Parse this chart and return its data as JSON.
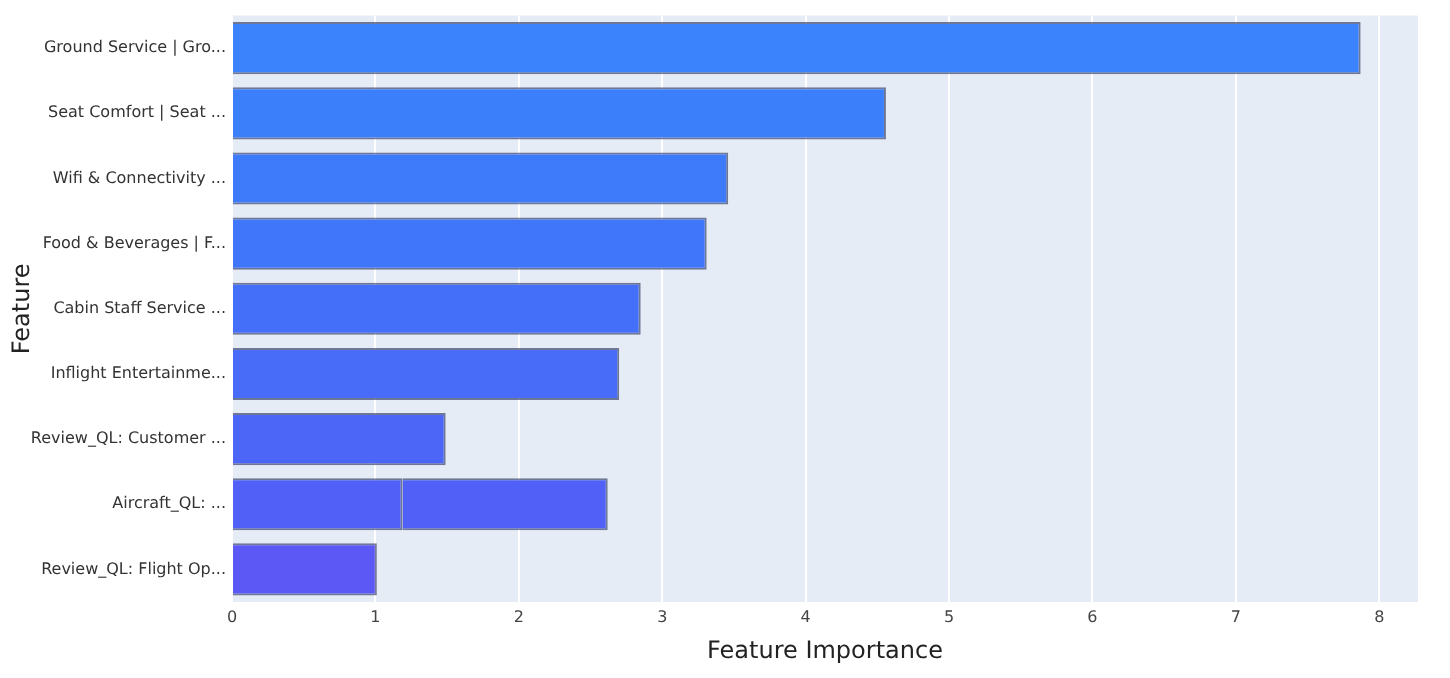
{
  "chart_data": {
    "type": "bar",
    "orientation": "horizontal",
    "stacked": true,
    "xlabel": "Feature Importance",
    "ylabel": "Feature",
    "categories": [
      "Ground Service | Gro...",
      "Seat Comfort | Seat ...",
      "Wifi & Connectivity ...",
      "Food & Beverages | F...",
      "Cabin Staff Service ...",
      "Inflight Entertainme...",
      "Review_QL: Customer ...",
      "Aircraft_QL: ...",
      "Review_QL: Flight Op..."
    ],
    "series": [
      {
        "values": [
          7.87,
          4.56,
          3.46,
          3.31,
          2.85,
          2.7,
          1.49,
          1.19,
          1.01
        ],
        "colors": [
          "#3a83fc",
          "#3c7ffb",
          "#3e7bfb",
          "#4076fa",
          "#4470f9",
          "#486bf8",
          "#4c66f7",
          "#5161f7",
          "#5c58f5"
        ]
      },
      {
        "values": [
          null,
          null,
          null,
          null,
          null,
          null,
          null,
          1.43,
          null
        ],
        "colors": [
          "#3a83fc",
          "#3c7ffb",
          "#3e7bfb",
          "#4076fa",
          "#4470f9",
          "#486bf8",
          "#4c66f7",
          "#5161f7",
          "#5c58f5"
        ]
      }
    ],
    "xlim": [
      0,
      8.27
    ],
    "xticks": [
      0,
      1,
      2,
      3,
      4,
      5,
      6,
      7,
      8
    ],
    "grid": "x",
    "legend": false
  }
}
